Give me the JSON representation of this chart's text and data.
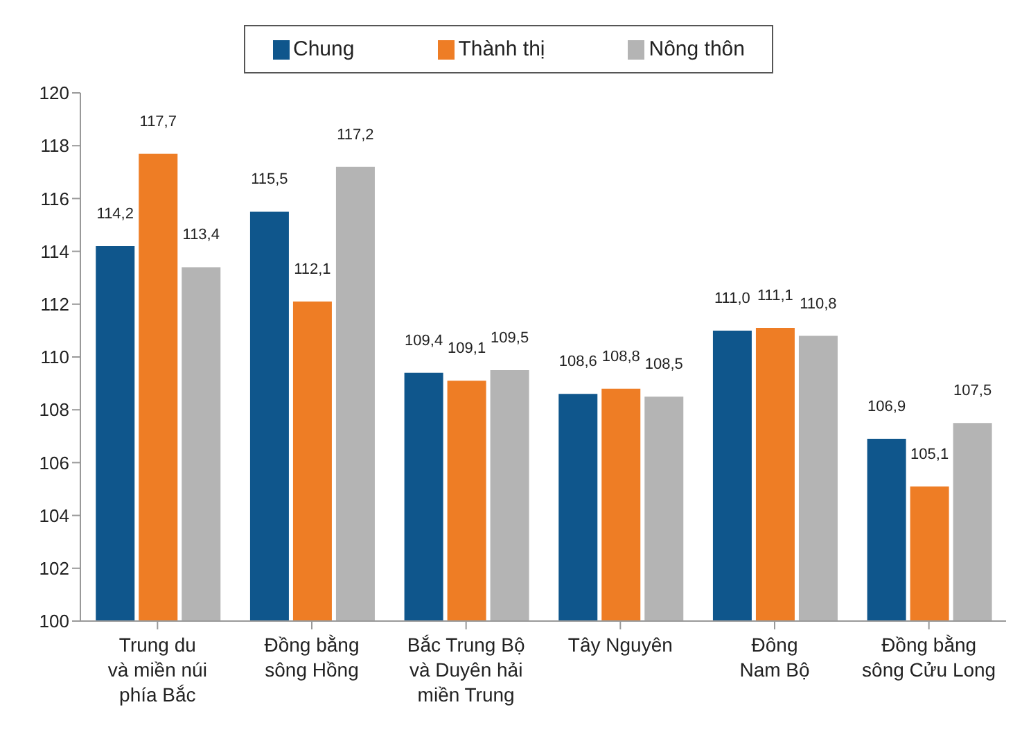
{
  "chart_data": {
    "type": "bar",
    "categories": [
      "Trung du\nvà miền núi\nphía Bắc",
      "Đồng bằng\nsông Hồng",
      "Bắc Trung Bộ\nvà Duyên hải\nmiền Trung",
      "Tây Nguyên",
      "Đông\nNam Bộ",
      "Đồng bằng\nsông Cửu Long"
    ],
    "series": [
      {
        "name": "Chung",
        "color": "#0f568c",
        "values": [
          114.2,
          115.5,
          109.4,
          108.6,
          111.0,
          106.9
        ],
        "value_labels": [
          "114,2",
          "115,5",
          "109,4",
          "108,6",
          "111,0",
          "106,9"
        ]
      },
      {
        "name": "Thành thị",
        "color": "#ee7d25",
        "values": [
          117.7,
          112.1,
          109.1,
          108.8,
          111.1,
          105.1
        ],
        "value_labels": [
          "117,7",
          "112,1",
          "109,1",
          "108,8",
          "111,1",
          "105,1"
        ]
      },
      {
        "name": "Nông thôn",
        "color": "#b4b4b4",
        "values": [
          113.4,
          117.2,
          109.5,
          108.5,
          110.8,
          107.5
        ],
        "value_labels": [
          "113,4",
          "117,2",
          "109,5",
          "108,5",
          "110,8",
          "107,5"
        ]
      }
    ],
    "ylim": [
      100,
      120
    ],
    "yticks": [
      100,
      102,
      104,
      106,
      108,
      110,
      112,
      114,
      116,
      118,
      120
    ],
    "grid": false,
    "legend": "top"
  }
}
